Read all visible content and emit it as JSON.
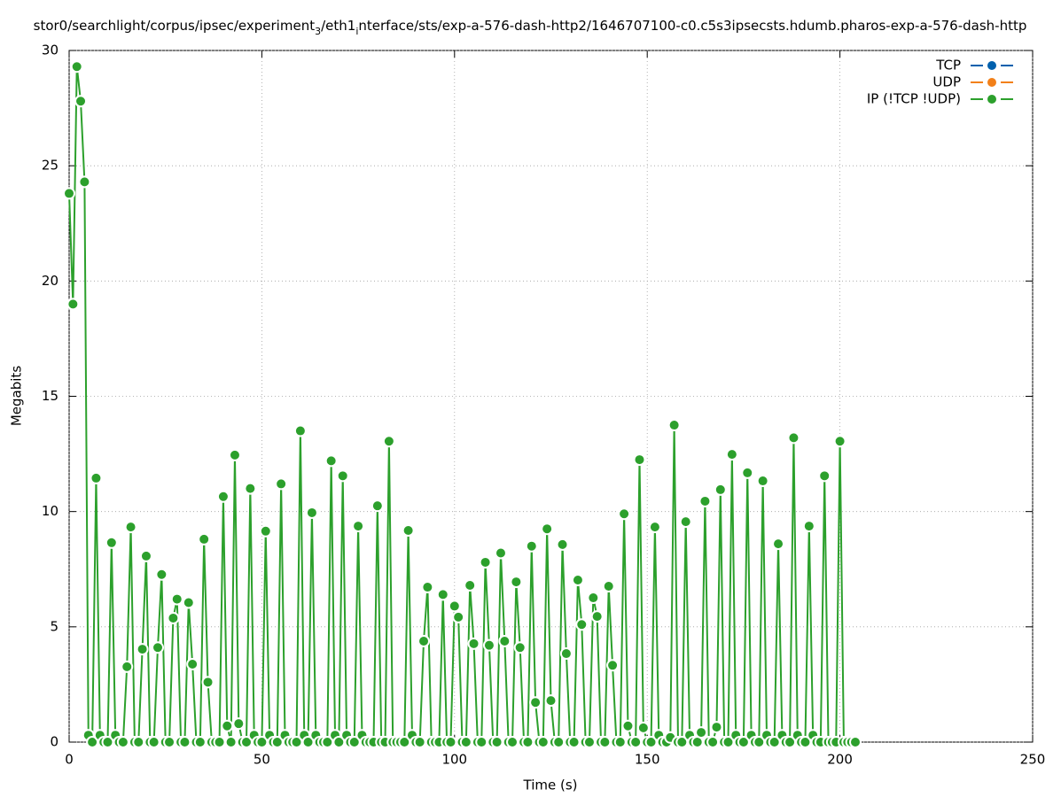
{
  "chart_data": {
    "type": "line",
    "title_parts": [
      "stor0/searchlight/corpus/ipsec/experiment",
      "3",
      "/eth1",
      "i",
      "nterface/sts/exp-a-576-dash-http2/1646707100-c0.c5s3ipsecsts.hdumb.pharos-exp-a-576-dash-http"
    ],
    "xlabel": "Time (s)",
    "ylabel": "Megabits",
    "xlim": [
      0,
      250
    ],
    "xticks": [
      0,
      50,
      100,
      150,
      200,
      250
    ],
    "ylim": [
      0,
      30
    ],
    "yticks": [
      0,
      5,
      10,
      15,
      20,
      25,
      30
    ],
    "grid": true,
    "legend": "top-right",
    "x": [
      0,
      1,
      2,
      3,
      4,
      5,
      6,
      7,
      8,
      9,
      10,
      11,
      12,
      13,
      14,
      15,
      16,
      17,
      18,
      19,
      20,
      21,
      22,
      23,
      24,
      25,
      26,
      27,
      28,
      29,
      30,
      31,
      32,
      33,
      34,
      35,
      36,
      37,
      38,
      39,
      40,
      41,
      42,
      43,
      44,
      45,
      46,
      47,
      48,
      49,
      50,
      51,
      52,
      53,
      54,
      55,
      56,
      57,
      58,
      59,
      60,
      61,
      62,
      63,
      64,
      65,
      66,
      67,
      68,
      69,
      70,
      71,
      72,
      73,
      74,
      75,
      76,
      77,
      78,
      79,
      80,
      81,
      82,
      83,
      84,
      85,
      86,
      87,
      88,
      89,
      90,
      91,
      92,
      93,
      94,
      95,
      96,
      97,
      98,
      99,
      100,
      101,
      102,
      103,
      104,
      105,
      106,
      107,
      108,
      109,
      110,
      111,
      112,
      113,
      114,
      115,
      116,
      117,
      118,
      119,
      120,
      121,
      122,
      123,
      124,
      125,
      126,
      127,
      128,
      129,
      130,
      131,
      132,
      133,
      134,
      135,
      136,
      137,
      138,
      139,
      140,
      141,
      142,
      143,
      144,
      145,
      146,
      147,
      148,
      149,
      150,
      151,
      152,
      153,
      154,
      155,
      156,
      157,
      158,
      159,
      160,
      161,
      162,
      163,
      164,
      165,
      166,
      167,
      168,
      169,
      170,
      171,
      172,
      173,
      174,
      175,
      176,
      177,
      178,
      179,
      180,
      181,
      182,
      183,
      184,
      185,
      186,
      187,
      188,
      189,
      190,
      191,
      192,
      193,
      194,
      195,
      196,
      197,
      198,
      199,
      200,
      201,
      202,
      203,
      204
    ],
    "series": [
      {
        "name": "TCP",
        "color": "#0060ad"
      },
      {
        "name": "UDP",
        "color": "#f28019"
      },
      {
        "name": "IP (!TCP  !UDP)",
        "color": "#2ca02c",
        "values": [
          23.8,
          19,
          29.3,
          27.8,
          24.3,
          0.3,
          0,
          11.45,
          0.3,
          0,
          0,
          8.65,
          0.3,
          0,
          0,
          3.27,
          9.33,
          0,
          0,
          4.03,
          8.07,
          0,
          0,
          4.1,
          7.27,
          0,
          0,
          5.38,
          6.2,
          0,
          0,
          6.05,
          3.38,
          0,
          0,
          8.8,
          2.6,
          0,
          0,
          0,
          10.65,
          0.7,
          0,
          12.45,
          0.8,
          0,
          0,
          11,
          0.3,
          0,
          0,
          9.15,
          0.3,
          0,
          0,
          11.2,
          0.3,
          0,
          0,
          0,
          13.5,
          0.3,
          0,
          9.95,
          0.3,
          0,
          0,
          0,
          12.2,
          0.3,
          0,
          11.55,
          0.3,
          0,
          0,
          9.37,
          0.3,
          0,
          0,
          0,
          10.25,
          0,
          0,
          13.05,
          0,
          0,
          0,
          0,
          9.18,
          0.3,
          0,
          0,
          4.38,
          6.72,
          0,
          0,
          0,
          6.4,
          0,
          0,
          5.9,
          5.42,
          0,
          0,
          6.8,
          4.27,
          0,
          0,
          7.8,
          4.2,
          0,
          0,
          8.2,
          4.38,
          0,
          0,
          6.95,
          4.1,
          0,
          0,
          8.5,
          1.72,
          0,
          0,
          9.25,
          1.8,
          0,
          0,
          8.57,
          3.84,
          0,
          0,
          7.03,
          5.1,
          0,
          0,
          6.26,
          5.45,
          0,
          0,
          6.76,
          3.33,
          0,
          0,
          9.9,
          0.7,
          0,
          0,
          12.25,
          0.62,
          0,
          0,
          9.33,
          0.3,
          0,
          0,
          0.2,
          13.75,
          0,
          0,
          9.56,
          0.3,
          0,
          0,
          0.42,
          10.45,
          0,
          0,
          0.65,
          10.95,
          0,
          0,
          12.48,
          0.3,
          0,
          0,
          11.68,
          0.3,
          0,
          0,
          11.33,
          0.3,
          0,
          0,
          8.6,
          0.3,
          0,
          0,
          13.2,
          0.3,
          0,
          0,
          9.37,
          0.3,
          0,
          0,
          11.55,
          0,
          0,
          0,
          13.05,
          0,
          0,
          0,
          0
        ]
      }
    ]
  }
}
